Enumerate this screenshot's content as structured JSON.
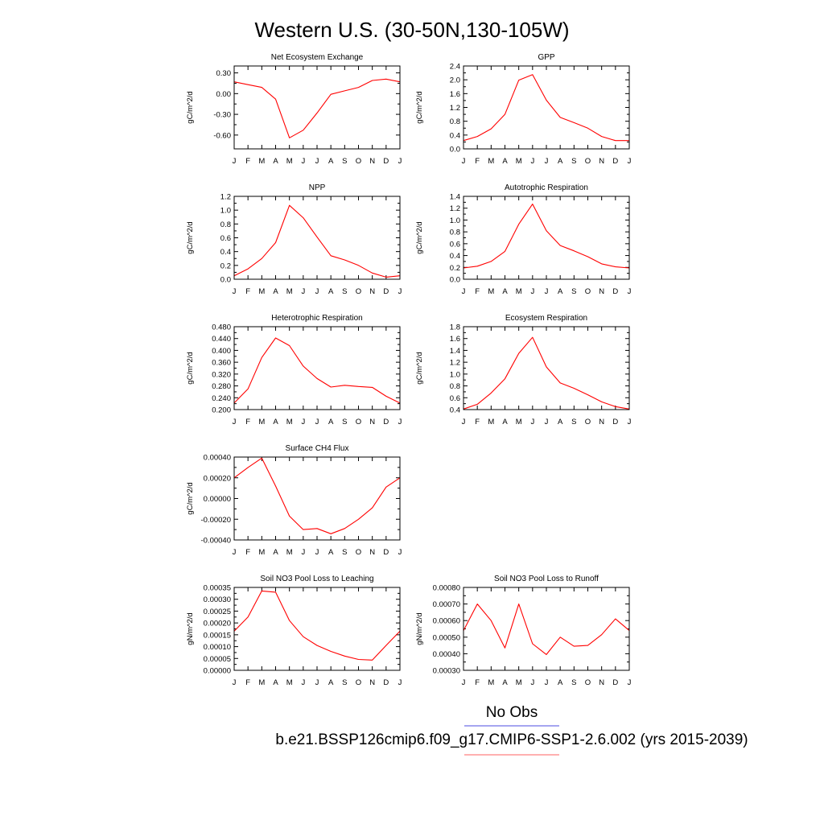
{
  "page": {
    "title": "Western U.S. (30-50N,130-105W)",
    "legend": [
      {
        "label": "No Obs",
        "color": "#6f6fe8"
      },
      {
        "label": "b.e21.BSSP126cmip6.f09_g17.CMIP6-SSP1-2.6.002 (yrs 2015-2039)",
        "color": "#ff8080"
      }
    ]
  },
  "chart_data": [
    {
      "id": "nee",
      "type": "line",
      "title": "Net Ecosystem Exchange",
      "ylabel": "gC/m^2/d",
      "categories": [
        "J",
        "F",
        "M",
        "A",
        "M",
        "J",
        "J",
        "A",
        "S",
        "O",
        "N",
        "D",
        "J"
      ],
      "ylim": [
        -0.8,
        0.4
      ],
      "yticks": [
        0.3,
        0.0,
        -0.3,
        -0.6
      ],
      "yticklabels": [
        "0.30",
        "0.00",
        "-0.30",
        "-0.60"
      ],
      "series": [
        {
          "values": [
            0.17,
            0.13,
            0.09,
            -0.08,
            -0.64,
            -0.53,
            -0.28,
            -0.01,
            0.04,
            0.09,
            0.19,
            0.21,
            0.17
          ],
          "color": "#ff0000"
        }
      ]
    },
    {
      "id": "gpp",
      "type": "line",
      "title": "GPP",
      "ylabel": "gC/m^2/d",
      "categories": [
        "J",
        "F",
        "M",
        "A",
        "M",
        "J",
        "J",
        "A",
        "S",
        "O",
        "N",
        "D",
        "J"
      ],
      "ylim": [
        0.0,
        2.4
      ],
      "yticks": [
        0.0,
        0.4,
        0.8,
        1.2,
        1.6,
        2.0,
        2.4
      ],
      "yticklabels": [
        "0.0",
        "0.4",
        "0.8",
        "1.2",
        "1.6",
        "2.0",
        "2.4"
      ],
      "series": [
        {
          "values": [
            0.24,
            0.36,
            0.58,
            1.0,
            1.99,
            2.15,
            1.41,
            0.91,
            0.76,
            0.6,
            0.36,
            0.24,
            0.24
          ],
          "color": "#ff0000"
        }
      ]
    },
    {
      "id": "npp",
      "type": "line",
      "title": "NPP",
      "ylabel": "gC/m^2/d",
      "categories": [
        "J",
        "F",
        "M",
        "A",
        "M",
        "J",
        "J",
        "A",
        "S",
        "O",
        "N",
        "D",
        "J"
      ],
      "ylim": [
        0.0,
        1.2
      ],
      "yticks": [
        0.0,
        0.2,
        0.4,
        0.6,
        0.8,
        1.0,
        1.2
      ],
      "yticklabels": [
        "0.0",
        "0.2",
        "0.4",
        "0.6",
        "0.8",
        "1.0",
        "1.2"
      ],
      "series": [
        {
          "values": [
            0.05,
            0.15,
            0.3,
            0.53,
            1.07,
            0.89,
            0.61,
            0.34,
            0.28,
            0.2,
            0.09,
            0.03,
            0.05
          ],
          "color": "#ff0000"
        }
      ]
    },
    {
      "id": "ar",
      "type": "line",
      "title": "Autotrophic Respiration",
      "ylabel": "gC/m^2/d",
      "categories": [
        "J",
        "F",
        "M",
        "A",
        "M",
        "J",
        "J",
        "A",
        "S",
        "O",
        "N",
        "D",
        "J"
      ],
      "ylim": [
        0.0,
        1.4
      ],
      "yticks": [
        0.0,
        0.2,
        0.4,
        0.6,
        0.8,
        1.0,
        1.2,
        1.4
      ],
      "yticklabels": [
        "0.0",
        "0.2",
        "0.4",
        "0.6",
        "0.8",
        "1.0",
        "1.2",
        "1.4"
      ],
      "series": [
        {
          "values": [
            0.19,
            0.22,
            0.3,
            0.47,
            0.93,
            1.27,
            0.82,
            0.57,
            0.48,
            0.38,
            0.26,
            0.21,
            0.19
          ],
          "color": "#ff0000"
        }
      ]
    },
    {
      "id": "hr",
      "type": "line",
      "title": "Heterotrophic Respiration",
      "ylabel": "gC/m^2/d",
      "categories": [
        "J",
        "F",
        "M",
        "A",
        "M",
        "J",
        "J",
        "A",
        "S",
        "O",
        "N",
        "D",
        "J"
      ],
      "ylim": [
        0.2,
        0.48
      ],
      "yticks": [
        0.2,
        0.24,
        0.28,
        0.32,
        0.36,
        0.4,
        0.44,
        0.48
      ],
      "yticklabels": [
        "0.200",
        "0.240",
        "0.280",
        "0.320",
        "0.360",
        "0.400",
        "0.440",
        "0.480"
      ],
      "series": [
        {
          "values": [
            0.222,
            0.27,
            0.376,
            0.442,
            0.416,
            0.347,
            0.305,
            0.276,
            0.282,
            0.278,
            0.275,
            0.245,
            0.222
          ],
          "color": "#ff0000"
        }
      ]
    },
    {
      "id": "er",
      "type": "line",
      "title": "Ecosystem Respiration",
      "ylabel": "gC/m^2/d",
      "categories": [
        "J",
        "F",
        "M",
        "A",
        "M",
        "J",
        "J",
        "A",
        "S",
        "O",
        "N",
        "D",
        "J"
      ],
      "ylim": [
        0.4,
        1.8
      ],
      "yticks": [
        0.4,
        0.6,
        0.8,
        1.0,
        1.2,
        1.4,
        1.6,
        1.8
      ],
      "yticklabels": [
        "0.4",
        "0.6",
        "0.8",
        "1.0",
        "1.2",
        "1.4",
        "1.6",
        "1.8"
      ],
      "series": [
        {
          "values": [
            0.41,
            0.49,
            0.68,
            0.92,
            1.35,
            1.62,
            1.12,
            0.85,
            0.76,
            0.65,
            0.53,
            0.45,
            0.41
          ],
          "color": "#ff0000"
        }
      ]
    },
    {
      "id": "ch4",
      "type": "line",
      "title": "Surface CH4 Flux",
      "ylabel": "gC/m^2/d",
      "categories": [
        "J",
        "F",
        "M",
        "A",
        "M",
        "J",
        "J",
        "A",
        "S",
        "O",
        "N",
        "D",
        "J"
      ],
      "ylim": [
        -0.0004,
        0.0004
      ],
      "yticks": [
        0.0004,
        0.0002,
        0.0,
        -0.0002,
        -0.0004
      ],
      "yticklabels": [
        "0.00040",
        "0.00020",
        "0.00000",
        "-0.00020",
        "-0.00040"
      ],
      "series": [
        {
          "values": [
            0.0002,
            0.0003,
            0.00039,
            0.00012,
            -0.00017,
            -0.0003,
            -0.00029,
            -0.00034,
            -0.00029,
            -0.0002,
            -9e-05,
            0.00011,
            0.0002
          ],
          "color": "#ff0000"
        }
      ]
    },
    {
      "id": "leach",
      "type": "line",
      "title": "Soil NO3 Pool Loss to Leaching",
      "ylabel": "gN/m^2/d",
      "categories": [
        "J",
        "F",
        "M",
        "A",
        "M",
        "J",
        "J",
        "A",
        "S",
        "O",
        "N",
        "D",
        "J"
      ],
      "ylim": [
        0.0,
        0.00035
      ],
      "yticks": [
        0.0,
        5e-05,
        0.0001,
        0.00015,
        0.0002,
        0.00025,
        0.0003,
        0.00035
      ],
      "yticklabels": [
        "0.00000",
        "0.00005",
        "0.00010",
        "0.00015",
        "0.00020",
        "0.00025",
        "0.00030",
        "0.00035"
      ],
      "series": [
        {
          "values": [
            0.000165,
            0.000225,
            0.000335,
            0.00033,
            0.00021,
            0.000142,
            0.000105,
            8e-05,
            6e-05,
            4.6e-05,
            4.3e-05,
            0.000105,
            0.000165
          ],
          "color": "#ff0000"
        }
      ]
    },
    {
      "id": "runoff",
      "type": "line",
      "title": "Soil NO3 Pool Loss to Runoff",
      "ylabel": "gN/m^2/d",
      "categories": [
        "J",
        "F",
        "M",
        "A",
        "M",
        "J",
        "J",
        "A",
        "S",
        "O",
        "N",
        "D",
        "J"
      ],
      "ylim": [
        0.0003,
        0.0008
      ],
      "yticks": [
        0.0003,
        0.0004,
        0.0005,
        0.0006,
        0.0007,
        0.0008
      ],
      "yticklabels": [
        "0.00030",
        "0.00040",
        "0.00050",
        "0.00060",
        "0.00070",
        "0.00080"
      ],
      "series": [
        {
          "values": [
            0.00054,
            0.0007,
            0.0006,
            0.000435,
            0.0007,
            0.00046,
            0.000395,
            0.0005,
            0.000445,
            0.00045,
            0.000515,
            0.00061,
            0.00054
          ],
          "color": "#ff0000"
        }
      ]
    }
  ]
}
